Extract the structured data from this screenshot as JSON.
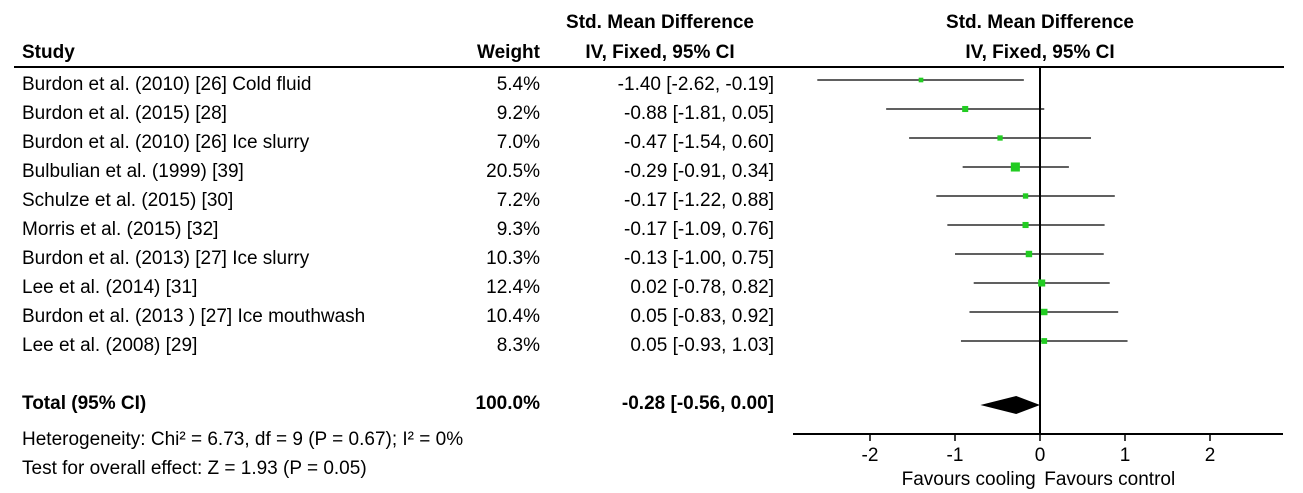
{
  "header": {
    "study": "Study",
    "weight": "Weight",
    "effect_line1": "Std. Mean Difference",
    "effect_line2": "IV, Fixed, 95% CI",
    "plot_line1": "Std. Mean Difference",
    "plot_line2": "IV, Fixed, 95% CI"
  },
  "rows": [
    {
      "study": "Burdon et al. (2010) [26] Cold fluid",
      "weight": "5.4%",
      "ci": "-1.40 [-2.62, -0.19]"
    },
    {
      "study": "Burdon et al. (2015) [28]",
      "weight": "9.2%",
      "ci": "-0.88 [-1.81, 0.05]"
    },
    {
      "study": "Burdon et al. (2010) [26] Ice slurry",
      "weight": "7.0%",
      "ci": "-0.47 [-1.54, 0.60]"
    },
    {
      "study": "Bulbulian et al. (1999) [39]",
      "weight": "20.5%",
      "ci": "-0.29 [-0.91, 0.34]"
    },
    {
      "study": "Schulze et al. (2015) [30]",
      "weight": "7.2%",
      "ci": "-0.17 [-1.22, 0.88]"
    },
    {
      "study": "Morris et al. (2015) [32]",
      "weight": "9.3%",
      "ci": "-0.17 [-1.09, 0.76]"
    },
    {
      "study": "Burdon et al. (2013) [27] Ice slurry",
      "weight": "10.3%",
      "ci": "-0.13 [-1.00, 0.75]"
    },
    {
      "study": "Lee et al. (2014) [31]",
      "weight": "12.4%",
      "ci": "0.02 [-0.78, 0.82]"
    },
    {
      "study": "Burdon et al. (2013 ) [27] Ice mouthwash",
      "weight": "10.4%",
      "ci": "0.05 [-0.83, 0.92]"
    },
    {
      "study": "Lee et al. (2008) [29]",
      "weight": "8.3%",
      "ci": "0.05 [-0.93, 1.03]"
    }
  ],
  "total": {
    "label": "Total (95% CI)",
    "weight": "100.0%",
    "ci": "-0.28 [-0.56, 0.00]"
  },
  "heterogeneity": "Heterogeneity: Chi² = 6.73, df = 9 (P = 0.67); I² = 0%",
  "overall_effect": "Test for overall effect: Z = 1.93 (P = 0.05)",
  "chart_data": {
    "type": "scatter",
    "subtype": "forest-plot",
    "studies": [
      {
        "name": "Burdon et al. (2010) [26] Cold fluid",
        "estimate": -1.4,
        "lower": -2.62,
        "upper": -0.19,
        "weight": 5.4
      },
      {
        "name": "Burdon et al. (2015) [28]",
        "estimate": -0.88,
        "lower": -1.81,
        "upper": 0.05,
        "weight": 9.2
      },
      {
        "name": "Burdon et al. (2010) [26] Ice slurry",
        "estimate": -0.47,
        "lower": -1.54,
        "upper": 0.6,
        "weight": 7.0
      },
      {
        "name": "Bulbulian et al. (1999) [39]",
        "estimate": -0.29,
        "lower": -0.91,
        "upper": 0.34,
        "weight": 20.5
      },
      {
        "name": "Schulze et al. (2015) [30]",
        "estimate": -0.17,
        "lower": -1.22,
        "upper": 0.88,
        "weight": 7.2
      },
      {
        "name": "Morris et al. (2015) [32]",
        "estimate": -0.17,
        "lower": -1.09,
        "upper": 0.76,
        "weight": 9.3
      },
      {
        "name": "Burdon et al. (2013) [27] Ice slurry",
        "estimate": -0.13,
        "lower": -1.0,
        "upper": 0.75,
        "weight": 10.3
      },
      {
        "name": "Lee et al. (2014) [31]",
        "estimate": 0.02,
        "lower": -0.78,
        "upper": 0.82,
        "weight": 12.4
      },
      {
        "name": "Burdon et al. (2013 ) [27] Ice mouthwash",
        "estimate": 0.05,
        "lower": -0.83,
        "upper": 0.92,
        "weight": 10.4
      },
      {
        "name": "Lee et al. (2008) [29]",
        "estimate": 0.05,
        "lower": -0.93,
        "upper": 1.03,
        "weight": 8.3
      }
    ],
    "pooled": {
      "estimate": -0.28,
      "lower": -0.56,
      "upper": 0.0
    },
    "xlim": [
      -2.7,
      2.9
    ],
    "xticks": [
      -2,
      -1,
      0,
      1,
      2
    ],
    "xtick_labels": [
      "-2",
      "-1",
      "0",
      "1",
      "2"
    ],
    "favours_left": "Favours cooling",
    "favours_right": "Favours control",
    "marker_color": "#22cc22",
    "pooled_color": "#000000",
    "grid": false
  }
}
